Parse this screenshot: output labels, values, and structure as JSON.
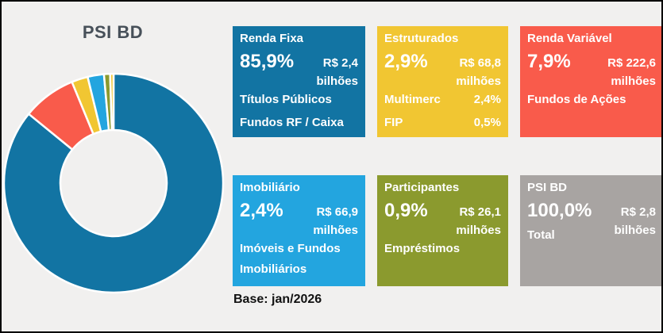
{
  "frame": {
    "background": "#f1f0ef",
    "border_color": "#000000"
  },
  "chart": {
    "title": "PSI BD"
  },
  "chart_data": {
    "type": "pie",
    "subtype": "donut",
    "title": "PSI BD",
    "start_angle_deg": 0,
    "direction": "clockwise",
    "inner_radius_ratio": 0.49,
    "slices": [
      {
        "label": "Renda Fixa",
        "value": 85.9,
        "color": "#1274a3"
      },
      {
        "label": "Renda Variável",
        "value": 7.9,
        "color": "#f95b4b"
      },
      {
        "label": "Multimerc",
        "value": 2.4,
        "color": "#f1c632"
      },
      {
        "label": "Imobiliário",
        "value": 2.4,
        "color": "#23a5df"
      },
      {
        "label": "Empréstimos",
        "value": 0.9,
        "color": "#8b9a2e"
      },
      {
        "label": "FIP",
        "value": 0.5,
        "color": "#f1c632"
      }
    ],
    "legend": "none",
    "totals": {
      "label": "PSI BD Total",
      "pct": 100.0,
      "amount": "R$ 2,8 bilhões"
    }
  },
  "panels": [
    {
      "title": "Renda Fixa",
      "pct": "85,9%",
      "amount": "R$ 2,4",
      "unit": "bilhões",
      "color": "#1274a3",
      "lines": [
        "Títulos Públicos",
        "Fundos RF / Caixa"
      ]
    },
    {
      "title": "Estruturados",
      "pct": "2,9%",
      "amount": "R$ 68,8",
      "unit": "milhões",
      "color": "#f1c632",
      "rows": [
        {
          "label": "Multimerc",
          "value": "2,4%"
        },
        {
          "label": "FIP",
          "value": "0,5%"
        }
      ]
    },
    {
      "title": "Renda Variável",
      "pct": "7,9%",
      "amount": "R$ 222,6",
      "unit": "milhões",
      "color": "#f95b4b",
      "lines": [
        "Fundos de Ações"
      ]
    },
    {
      "title": "Imobiliário",
      "pct": "2,4%",
      "amount": "R$ 66,9",
      "unit": "milhões",
      "color": "#23a5df",
      "lines": [
        "Imóveis e Fundos",
        "Imobiliários"
      ]
    },
    {
      "title": "Participantes",
      "pct": "0,9%",
      "amount": "R$ 26,1",
      "unit": "milhões",
      "color": "#8b9a2e",
      "lines": [
        "Empréstimos"
      ]
    },
    {
      "title": "PSI BD",
      "pct": "100,0%",
      "amount": "R$ 2,8",
      "unit": "bilhões",
      "color": "#a8a4a2",
      "sub": "Total"
    }
  ],
  "footer": {
    "base_label": "Base: jan/2026"
  }
}
